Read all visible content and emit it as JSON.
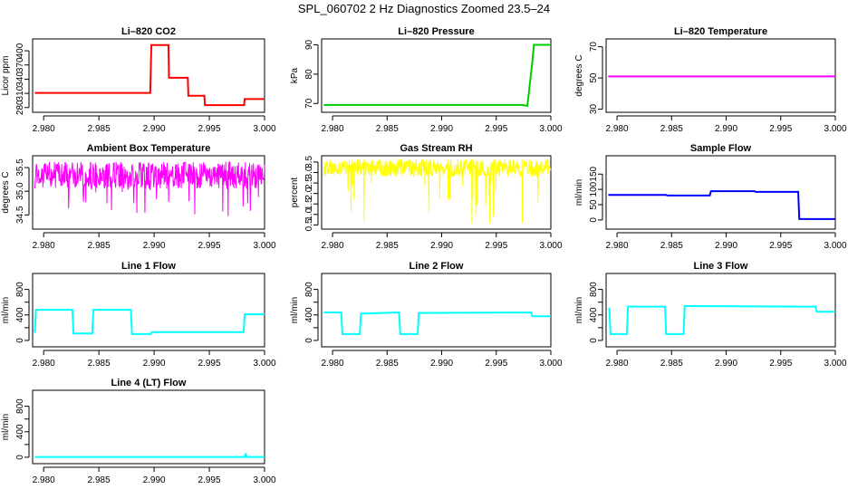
{
  "figure": {
    "title": "SPL_060702  2 Hz Diagnostics Zoomed 23.5–24"
  },
  "chart_data": [
    {
      "type": "line",
      "title": "Li–820 CO2",
      "ylabel": "Licor ppm",
      "color": "#ff0000",
      "xlim": [
        2.979,
        3.0
      ],
      "ylim": [
        270,
        425
      ],
      "xticks": [
        2.98,
        2.985,
        2.99,
        2.995,
        3.0
      ],
      "xtick_labels": [
        "2.980",
        "2.985",
        "2.990",
        "2.995",
        "3.000"
      ],
      "yticks": [
        280,
        310,
        340,
        370,
        400
      ],
      "ytick_labels": [
        "280",
        "310",
        "340",
        "370",
        "400"
      ],
      "series": [
        {
          "x": [
            2.9792,
            2.98965,
            2.98975,
            2.9913,
            2.99135,
            2.99305,
            2.9931,
            2.99455,
            2.9946,
            2.99815,
            2.9982,
            3.0
          ],
          "y": [
            311,
            311,
            412,
            412,
            343,
            343,
            305,
            305,
            285,
            285,
            298,
            298
          ]
        }
      ]
    },
    {
      "type": "line",
      "title": "Li–820 Pressure",
      "ylabel": "kPa",
      "color": "#00cc00",
      "xlim": [
        2.979,
        3.0
      ],
      "ylim": [
        67,
        92
      ],
      "xticks": [
        2.98,
        2.985,
        2.99,
        2.995,
        3.0
      ],
      "xtick_labels": [
        "2.980",
        "2.985",
        "2.990",
        "2.995",
        "3.000"
      ],
      "yticks": [
        70,
        80,
        90
      ],
      "ytick_labels": [
        "70",
        "80",
        "90"
      ],
      "series": [
        {
          "x": [
            2.9792,
            2.99735,
            2.99785,
            2.9983,
            2.99845,
            3.0
          ],
          "y": [
            69.5,
            69.5,
            69.2,
            84,
            90,
            90
          ]
        }
      ]
    },
    {
      "type": "line",
      "title": "Li–820 Temperature",
      "ylabel": "degrees C",
      "color": "#ff00ff",
      "xlim": [
        2.979,
        3.0
      ],
      "ylim": [
        28,
        75
      ],
      "xticks": [
        2.98,
        2.985,
        2.99,
        2.995,
        3.0
      ],
      "xtick_labels": [
        "2.980",
        "2.985",
        "2.990",
        "2.995",
        "3.000"
      ],
      "yticks": [
        30,
        50,
        70
      ],
      "ytick_labels": [
        "30",
        "50",
        "70"
      ],
      "series": [
        {
          "x": [
            2.9792,
            3.0
          ],
          "y": [
            51,
            51
          ]
        }
      ]
    },
    {
      "type": "line",
      "title": "Ambient Box Temperature",
      "ylabel": "degrees C",
      "color": "#ff00ff",
      "xlim": [
        2.979,
        3.0
      ],
      "ylim": [
        34.2,
        35.75
      ],
      "xticks": [
        2.98,
        2.985,
        2.99,
        2.995,
        3.0
      ],
      "xtick_labels": [
        "2.980",
        "2.985",
        "2.990",
        "2.995",
        "3.000"
      ],
      "yticks": [
        34.5,
        35.0,
        35.5
      ],
      "ytick_labels": [
        "34.5",
        "35.0",
        "35.5"
      ],
      "noise": {
        "base": 35.25,
        "band": [
          35.05,
          35.62
        ],
        "dips_to": 34.45
      },
      "series": [
        {
          "x": [
            2.9792,
            3.0
          ],
          "y": [
            35.25,
            35.25
          ]
        }
      ]
    },
    {
      "type": "line",
      "title": "Gas Stream RH",
      "ylabel": "percent",
      "color": "#ffff00",
      "xlim": [
        2.979,
        3.0
      ],
      "ylim": [
        0.3,
        3.8
      ],
      "xticks": [
        2.98,
        2.985,
        2.99,
        2.995,
        3.0
      ],
      "xtick_labels": [
        "2.980",
        "2.985",
        "2.990",
        "2.995",
        "3.000"
      ],
      "yticks": [
        0.5,
        1.0,
        1.5,
        2.0,
        2.5,
        3.0,
        3.5
      ],
      "ytick_labels": [
        "0.5",
        "1.0",
        "1.5",
        "2.0",
        "2.5",
        "3.0",
        "3.5"
      ],
      "noise": {
        "base": 3.2,
        "band": [
          2.8,
          3.65
        ],
        "dips_to": 0.5
      },
      "series": [
        {
          "x": [
            2.9792,
            3.0
          ],
          "y": [
            3.2,
            3.2
          ]
        }
      ]
    },
    {
      "type": "line",
      "title": "Sample Flow",
      "ylabel": "ml/min",
      "color": "#0000ff",
      "xlim": [
        2.979,
        3.0
      ],
      "ylim": [
        -30,
        210
      ],
      "xticks": [
        2.98,
        2.985,
        2.99,
        2.995,
        3.0
      ],
      "xtick_labels": [
        "2.980",
        "2.985",
        "2.990",
        "2.995",
        "3.000"
      ],
      "yticks": [
        0,
        50,
        100,
        150
      ],
      "ytick_labels": [
        "0",
        "50",
        "100",
        "150"
      ],
      "series": [
        {
          "x": [
            2.9792,
            2.9845,
            2.9846,
            2.9885,
            2.9886,
            2.9926,
            2.9927,
            2.9966,
            2.9967,
            3.0
          ],
          "y": [
            82,
            82,
            80,
            80,
            94,
            94,
            92,
            92,
            3,
            3
          ]
        }
      ]
    },
    {
      "type": "line",
      "title": "Line 1 Flow",
      "ylabel": "ml/min",
      "color": "#00ffff",
      "xlim": [
        2.979,
        3.0
      ],
      "ylim": [
        -100,
        1050
      ],
      "xticks": [
        2.98,
        2.985,
        2.99,
        2.995,
        3.0
      ],
      "xtick_labels": [
        "2.980",
        "2.985",
        "2.990",
        "2.995",
        "3.000"
      ],
      "yticks": [
        0,
        200,
        400,
        600,
        800
      ],
      "ytick_labels": [
        "0",
        "400",
        "800"
      ],
      "series": [
        {
          "x": [
            2.9792,
            2.9793,
            2.9826,
            2.9827,
            2.9844,
            2.9845,
            2.9879,
            2.988,
            2.9897,
            2.9898,
            2.9981,
            2.9982,
            3.0
          ],
          "y": [
            120,
            480,
            480,
            110,
            110,
            480,
            480,
            100,
            100,
            130,
            130,
            410,
            410
          ]
        }
      ]
    },
    {
      "type": "line",
      "title": "Line 2 Flow",
      "ylabel": "ml/min",
      "color": "#00ffff",
      "xlim": [
        2.979,
        3.0
      ],
      "ylim": [
        -100,
        1050
      ],
      "xticks": [
        2.98,
        2.985,
        2.99,
        2.995,
        3.0
      ],
      "xtick_labels": [
        "2.980",
        "2.985",
        "2.990",
        "2.995",
        "3.000"
      ],
      "yticks": [
        0,
        200,
        400,
        600,
        800
      ],
      "ytick_labels": [
        "0",
        "400",
        "800"
      ],
      "series": [
        {
          "x": [
            2.9792,
            2.9808,
            2.9809,
            2.9825,
            2.9826,
            2.9861,
            2.9862,
            2.9878,
            2.9879,
            2.9982,
            2.9983,
            3.0
          ],
          "y": [
            440,
            440,
            100,
            100,
            420,
            440,
            100,
            100,
            430,
            440,
            380,
            380
          ]
        }
      ]
    },
    {
      "type": "line",
      "title": "Line 3 Flow",
      "ylabel": "ml/min",
      "color": "#00ffff",
      "xlim": [
        2.979,
        3.0
      ],
      "ylim": [
        -100,
        1050
      ],
      "xticks": [
        2.98,
        2.985,
        2.99,
        2.995,
        3.0
      ],
      "xtick_labels": [
        "2.980",
        "2.985",
        "2.990",
        "2.995",
        "3.000"
      ],
      "yticks": [
        0,
        200,
        400,
        600,
        800
      ],
      "ytick_labels": [
        "0",
        "400",
        "800"
      ],
      "series": [
        {
          "x": [
            2.9792,
            2.9793,
            2.9794,
            2.9809,
            2.981,
            2.9844,
            2.9845,
            2.9861,
            2.9862,
            2.9982,
            2.9983,
            3.0
          ],
          "y": [
            500,
            500,
            100,
            100,
            530,
            530,
            100,
            100,
            540,
            530,
            450,
            450
          ]
        }
      ]
    },
    {
      "type": "line",
      "title": "Line 4 (LT) Flow",
      "ylabel": "ml/min",
      "color": "#00ffff",
      "xlim": [
        2.979,
        3.0
      ],
      "ylim": [
        -100,
        1050
      ],
      "xticks": [
        2.98,
        2.985,
        2.99,
        2.995,
        3.0
      ],
      "xtick_labels": [
        "2.980",
        "2.985",
        "2.990",
        "2.995",
        "3.000"
      ],
      "yticks": [
        0,
        200,
        400,
        600,
        800
      ],
      "ytick_labels": [
        "0",
        "400",
        "800"
      ],
      "series": [
        {
          "x": [
            2.9792,
            2.9982,
            2.9983,
            2.99835,
            2.9984,
            3.0
          ],
          "y": [
            5,
            5,
            60,
            5,
            5,
            5
          ]
        }
      ]
    }
  ]
}
